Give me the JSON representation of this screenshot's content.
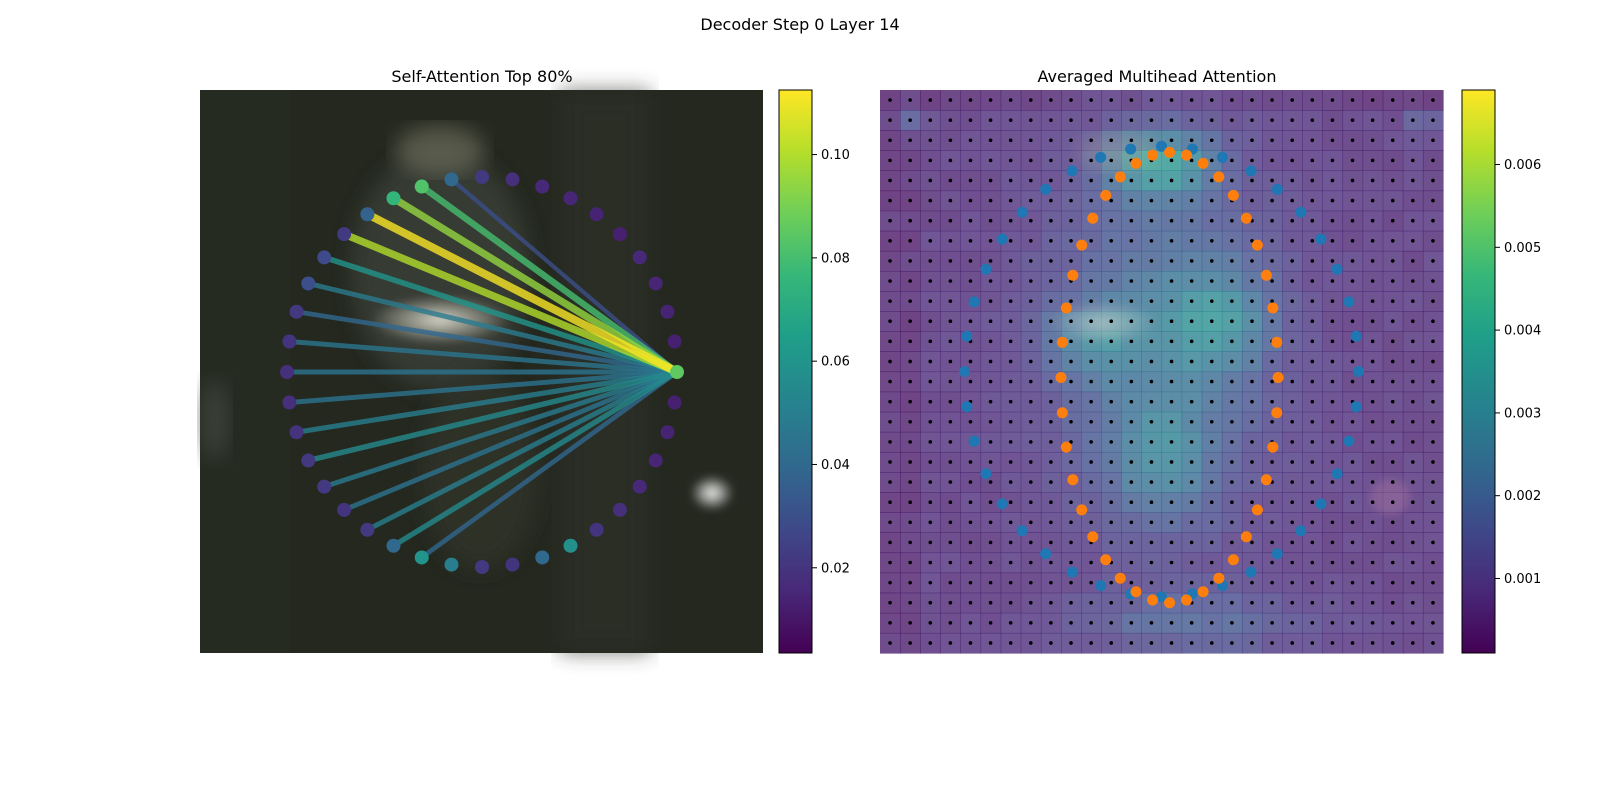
{
  "figure": {
    "suptitle": "Decoder Step 0 Layer 14"
  },
  "colors": {
    "viridis": [
      "#440154",
      "#482878",
      "#3e4989",
      "#31688e",
      "#26828e",
      "#1f9e89",
      "#35b779",
      "#6ece58",
      "#b5de2b",
      "#fde725"
    ],
    "orange_points": "#ff7f0e",
    "blue_points": "#1f77b4",
    "grid_dots": "#000000"
  },
  "chart_data": [
    {
      "type": "attention-ring",
      "title": "Self-Attention Top 80%",
      "n_points": 40,
      "query_index": 0,
      "node_weights": [
        0.085,
        0.013,
        0.014,
        0.015,
        0.016,
        0.013,
        0.014,
        0.015,
        0.016,
        0.018,
        0.022,
        0.04,
        0.082,
        0.075,
        0.038,
        0.022,
        0.028,
        0.03,
        0.022,
        0.02,
        0.018,
        0.018,
        0.02,
        0.022,
        0.022,
        0.02,
        0.022,
        0.04,
        0.06,
        0.05,
        0.022,
        0.02,
        0.04,
        0.058,
        0.02,
        0.018,
        0.016,
        0.015,
        0.014,
        0.013
      ],
      "edges": [
        {
          "to": 11,
          "w": 0.03
        },
        {
          "to": 12,
          "w": 0.08
        },
        {
          "to": 13,
          "w": 0.095
        },
        {
          "to": 14,
          "w": 0.112
        },
        {
          "to": 15,
          "w": 0.1
        },
        {
          "to": 16,
          "w": 0.06
        },
        {
          "to": 17,
          "w": 0.048
        },
        {
          "to": 18,
          "w": 0.04
        },
        {
          "to": 19,
          "w": 0.046
        },
        {
          "to": 20,
          "w": 0.045
        },
        {
          "to": 21,
          "w": 0.045
        },
        {
          "to": 22,
          "w": 0.05
        },
        {
          "to": 23,
          "w": 0.055
        },
        {
          "to": 24,
          "w": 0.048
        },
        {
          "to": 25,
          "w": 0.045
        },
        {
          "to": 26,
          "w": 0.05
        },
        {
          "to": 27,
          "w": 0.055
        },
        {
          "to": 28,
          "w": 0.04
        }
      ],
      "colorbar": {
        "min": 0.0035,
        "max": 0.1125,
        "ticks": [
          0.02,
          0.04,
          0.06,
          0.08,
          0.1
        ],
        "tick_labels": [
          "0.02",
          "0.04",
          "0.06",
          "0.08",
          "0.10"
        ]
      }
    },
    {
      "type": "heatmap",
      "title": "Averaged Multihead Attention",
      "grid_size": 28,
      "colorbar": {
        "min": 0.0001,
        "max": 0.0069,
        "ticks": [
          0.001,
          0.002,
          0.003,
          0.004,
          0.005,
          0.006
        ],
        "tick_labels": [
          "0.001",
          "0.002",
          "0.003",
          "0.004",
          "0.005",
          "0.006"
        ]
      },
      "blue_ellipse": {
        "n": 40,
        "cx": 14.0,
        "cy": 14.0,
        "rx": 9.8,
        "ry": 11.2
      },
      "orange_ring": {
        "n": 40,
        "cx": 14.4,
        "cy": 14.3,
        "rx": 5.4,
        "ry": 11.2
      }
    }
  ]
}
